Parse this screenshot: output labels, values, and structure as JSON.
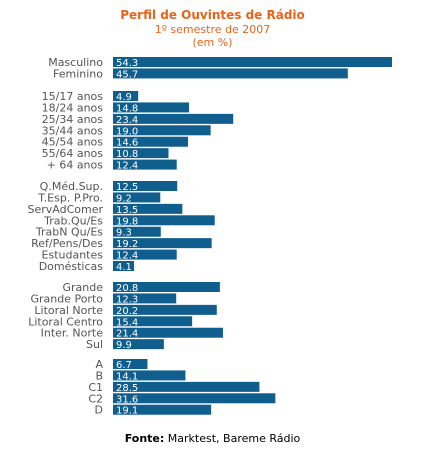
{
  "colors": {
    "title": "#e8641b",
    "bar": "#0f5e8e",
    "bar_text": "#ffffff",
    "label": "#555555",
    "footer": "#000000"
  },
  "chart_data": {
    "type": "bar",
    "orientation": "horizontal",
    "title": "Perfil de Ouvintes de Rádio",
    "subtitle_lines": [
      "1º semestre de 2007",
      "(em %)"
    ],
    "value_scale_max": 54.3,
    "groups": [
      {
        "categories": [
          "Masculino",
          "Feminino"
        ],
        "values": [
          54.3,
          45.7
        ]
      },
      {
        "categories": [
          "15/17 anos",
          "18/24 anos",
          "25/34 anos",
          "35/44 anos",
          "45/54 anos",
          "55/64 anos",
          "+ 64 anos"
        ],
        "values": [
          4.9,
          14.8,
          23.4,
          19.0,
          14.6,
          10.8,
          12.4
        ]
      },
      {
        "categories": [
          "Q.Méd.Sup.",
          "T.Esp. P.Pro.",
          "ServAdComer",
          "Trab.Qu/Es",
          "TrabN Qu/Es",
          "Ref/Pens/Des",
          "Estudantes",
          "Domésticas"
        ],
        "values": [
          12.5,
          9.2,
          13.5,
          19.8,
          9.3,
          19.2,
          12.4,
          4.1
        ]
      },
      {
        "categories": [
          "Grande",
          "Grande Porto",
          "Litoral Norte",
          "Litoral Centro",
          "Inter. Norte",
          "Sul"
        ],
        "values": [
          20.8,
          12.3,
          20.2,
          15.4,
          21.4,
          9.9
        ]
      },
      {
        "categories": [
          "A",
          "B",
          "C1",
          "C2",
          "D"
        ],
        "values": [
          6.7,
          14.1,
          28.5,
          31.6,
          19.1
        ]
      }
    ],
    "value_labels": {
      "54.3": "54.3",
      "45.7": "45.7",
      "4.9": "4.9",
      "14.8": "14.8",
      "23.4": "23.4",
      "19.0": "19.0",
      "14.6": "14.6",
      "10.8": "10.8",
      "12.4": "12.4",
      "12.5": "12.5",
      "9.2": "9.2",
      "13.5": "13.5",
      "19.8": "19.8",
      "9.3": "9.3",
      "19.2": "19.2",
      "4.1": "4.1",
      "20.8": "20.8",
      "12.3": "12.3",
      "20.2": "20.2",
      "15.4": "15.4",
      "21.4": "21.4",
      "9.9": "9.9",
      "6.7": "6.7",
      "14.1": "14.1",
      "28.5": "28.5",
      "31.6": "31.6",
      "19.1": "19.1"
    },
    "grid": false,
    "legend": "none"
  },
  "footer": {
    "label": "Fonte:",
    "text": "Marktest, Bareme Rádio"
  }
}
